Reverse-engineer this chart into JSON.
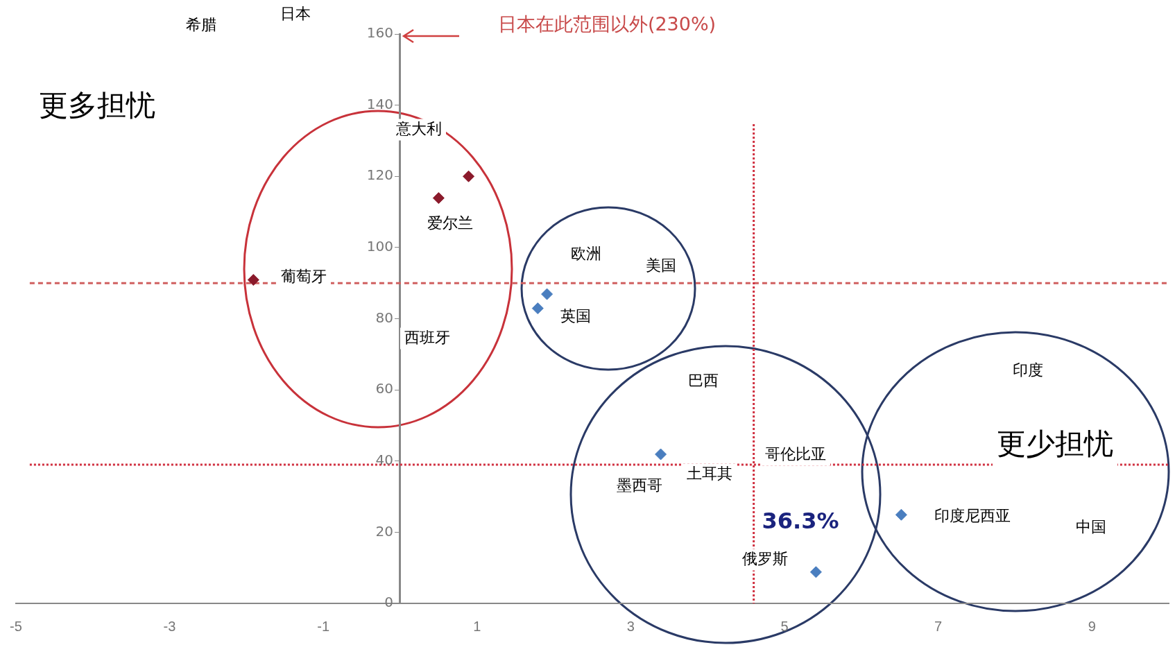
{
  "chart_data": {
    "type": "scatter",
    "x": [
      -1.91,
      0.5,
      0.89,
      1.79,
      1.91,
      3.39,
      6.52,
      5.41
    ],
    "values": [
      90.9,
      113.9,
      120,
      82.9,
      86.9,
      41.9,
      24.9,
      8.8
    ],
    "colors": [
      "#8b1a2b",
      "#8b1a2b",
      "#8b1a2b",
      "#4a7ebf",
      "#4a7ebf",
      "#4a7ebf",
      "#4a7ebf",
      "#4a7ebf"
    ],
    "marker": "diamond",
    "xlim": [
      -5,
      10
    ],
    "xticks": [
      -5,
      -3,
      -1,
      1,
      3,
      5,
      7,
      9
    ],
    "ylim": [
      0,
      160
    ],
    "yticks": [
      0,
      20,
      40,
      60,
      80,
      100,
      120,
      140,
      160
    ],
    "grid": false,
    "legend": false,
    "ref_lines": [
      {
        "axis": "y",
        "value": 90,
        "color": "#d06060",
        "line_style": "dashed"
      },
      {
        "axis": "x",
        "value": 4.6,
        "color": "#d03040",
        "line_style": "dotted"
      },
      {
        "axis": "y",
        "value": 39,
        "color": "#d03040",
        "line_style": "dotted"
      }
    ],
    "annotations": [
      "希腊",
      "日本",
      "日本在此范围以外(230%)",
      "更多担忧",
      "意大利",
      "爱尔兰",
      "葡萄牙",
      "西班牙",
      "欧洲",
      "美国",
      "英国",
      "巴西",
      "哥伦比亚",
      "土耳其",
      "墨西哥",
      "36.3%",
      "俄罗斯",
      "印度",
      "更少担忧",
      "印度尼西亚",
      "中国"
    ]
  }
}
